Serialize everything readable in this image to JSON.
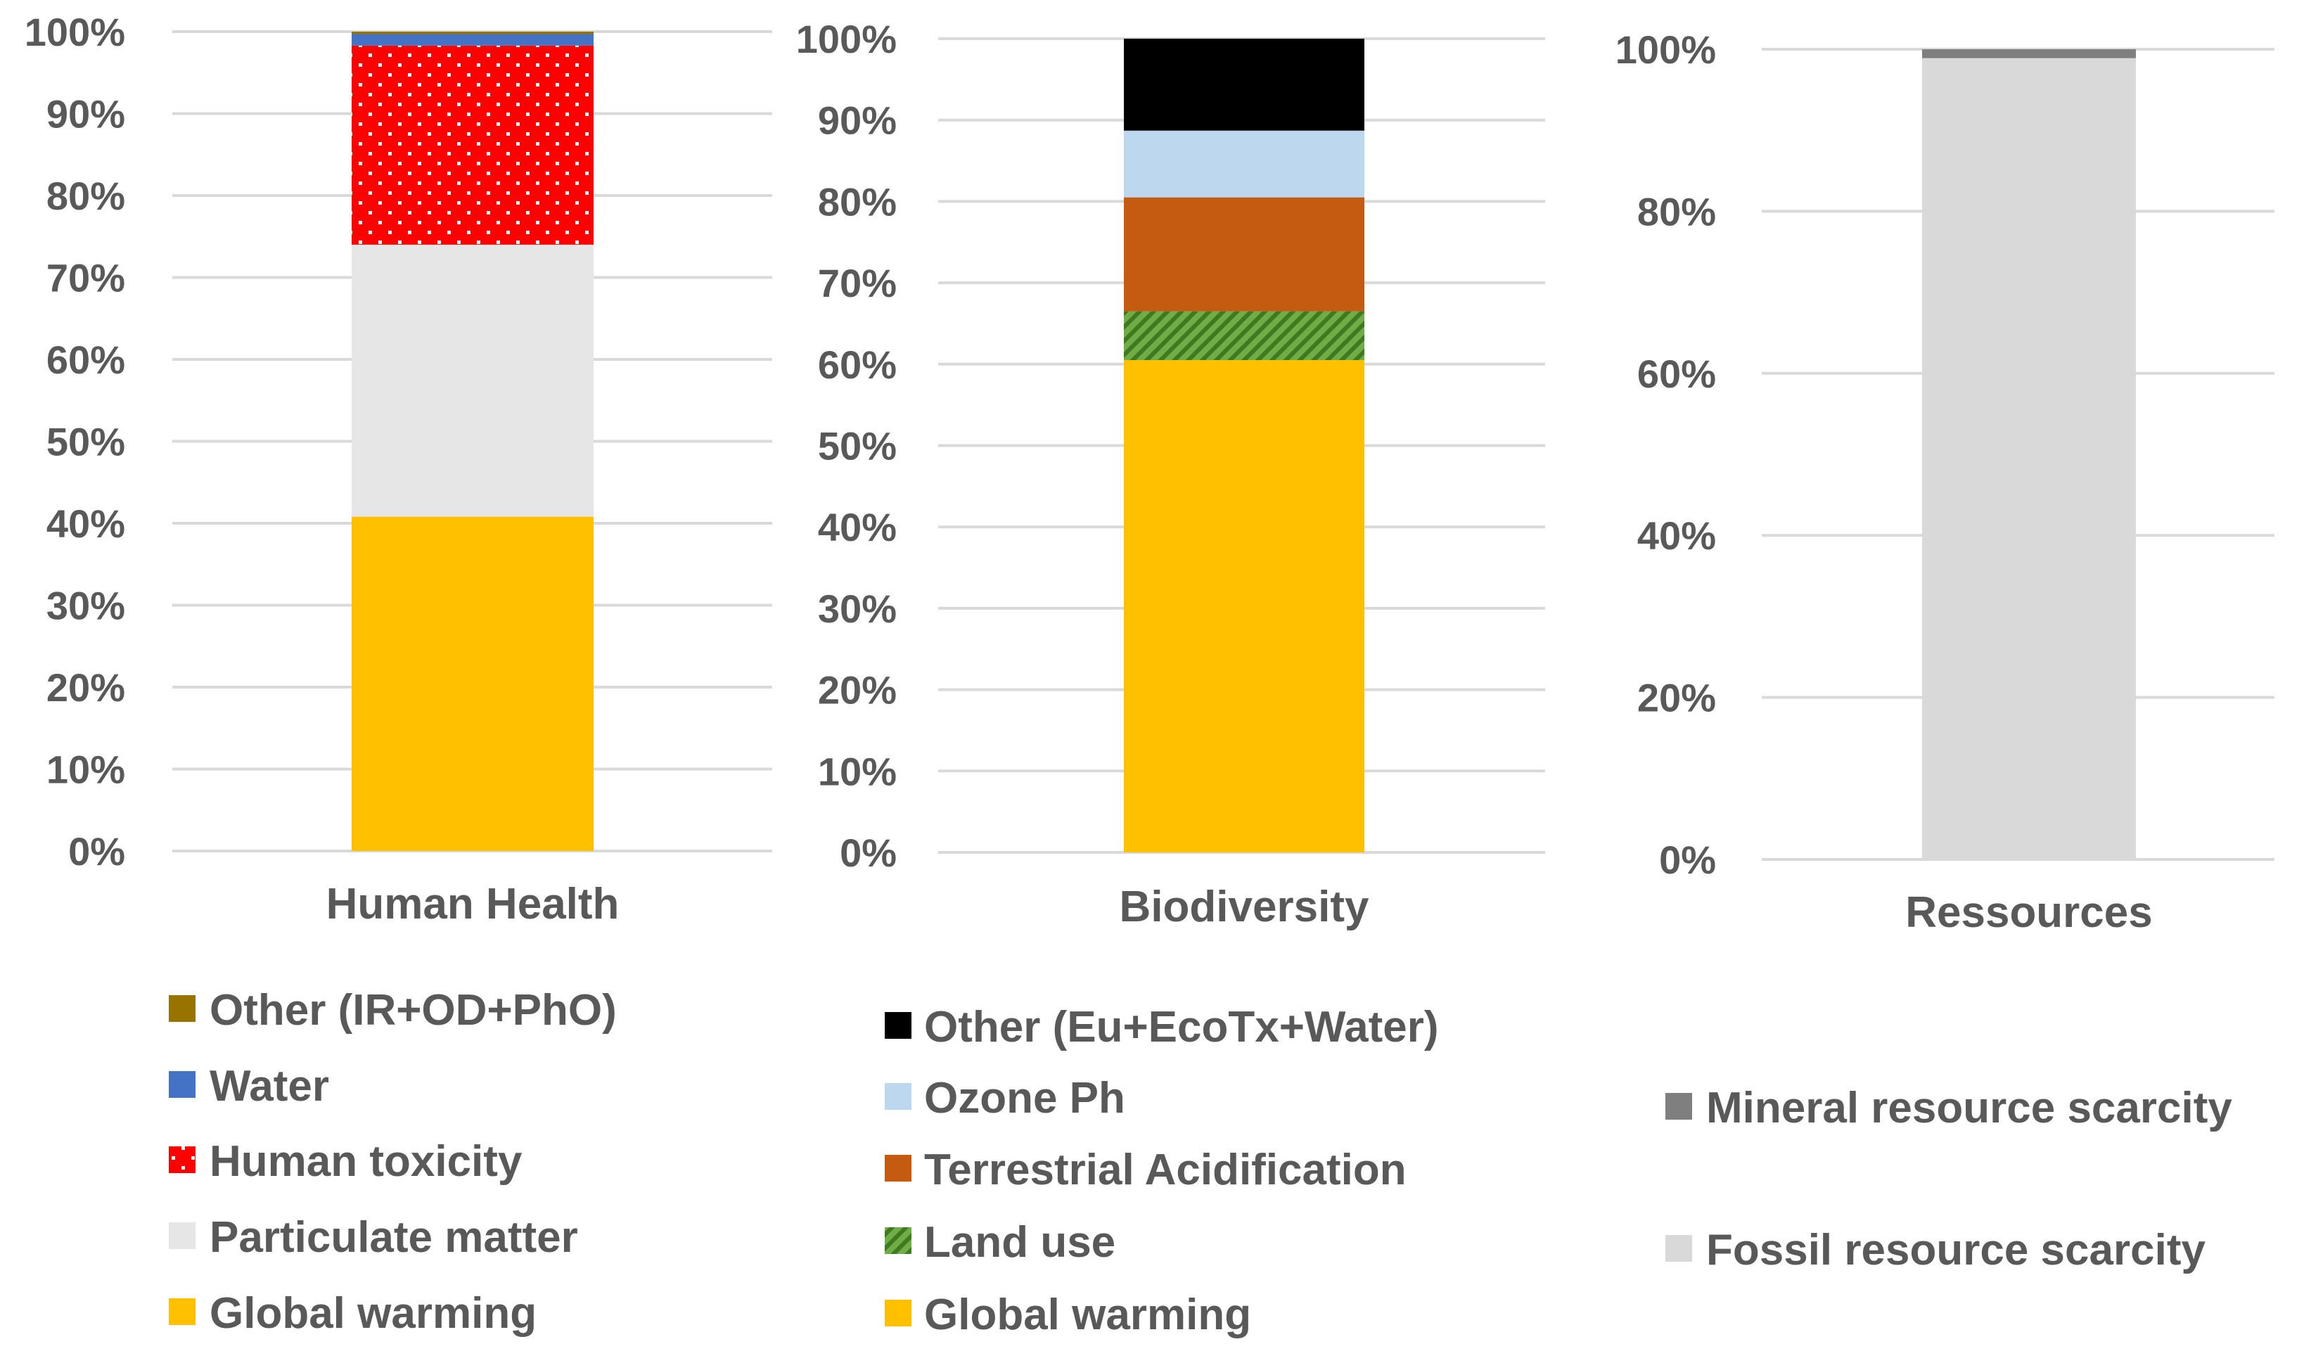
{
  "chart_data": [
    {
      "type": "bar",
      "stacked": true,
      "title": "",
      "categories": [
        "Human Health"
      ],
      "ylim": [
        0,
        100
      ],
      "yticks": [
        "0%",
        "10%",
        "20%",
        "30%",
        "40%",
        "50%",
        "60%",
        "70%",
        "80%",
        "90%",
        "100%"
      ],
      "grid": true,
      "series": [
        {
          "name": "Global warming",
          "values": [
            40.8
          ],
          "color": "#FFC000",
          "pattern": "solid"
        },
        {
          "name": "Particulate matter",
          "values": [
            33.2
          ],
          "color": "#E7E6E6",
          "pattern": "solid"
        },
        {
          "name": "Human toxicity",
          "values": [
            24.3
          ],
          "color": "#FF0000",
          "pattern": "dots"
        },
        {
          "name": "Water",
          "values": [
            1.4
          ],
          "color": "#4472C4",
          "pattern": "solid"
        },
        {
          "name": "Other (IR+OD+PhO)",
          "values": [
            0.3
          ],
          "color": "#997300",
          "pattern": "solid"
        }
      ],
      "legend_order": [
        "Other (IR+OD+PhO)",
        "Water",
        "Human toxicity",
        "Particulate matter",
        "Global warming"
      ],
      "legend_position": "bottom"
    },
    {
      "type": "bar",
      "stacked": true,
      "title": "",
      "categories": [
        "Biodiversity"
      ],
      "ylim": [
        0,
        100
      ],
      "yticks": [
        "0%",
        "10%",
        "20%",
        "30%",
        "40%",
        "50%",
        "60%",
        "70%",
        "80%",
        "90%",
        "100%"
      ],
      "grid": true,
      "series": [
        {
          "name": "Global warming",
          "values": [
            60.5
          ],
          "color": "#FFC000",
          "pattern": "solid"
        },
        {
          "name": "Land use",
          "values": [
            6.0
          ],
          "color": "#70AD47",
          "pattern": "stripes"
        },
        {
          "name": "Terrestrial Acidification",
          "values": [
            14.0
          ],
          "color": "#C55A11",
          "pattern": "solid"
        },
        {
          "name": "Ozone Ph",
          "values": [
            8.2
          ],
          "color": "#BDD7EE",
          "pattern": "solid"
        },
        {
          "name": "Other (Eu+EcoTx+Water)",
          "values": [
            11.3
          ],
          "color": "#000000",
          "pattern": "solid"
        }
      ],
      "legend_order": [
        "Other (Eu+EcoTx+Water)",
        "Ozone Ph",
        "Terrestrial Acidification",
        "Land use",
        "Global warming"
      ],
      "legend_position": "bottom"
    },
    {
      "type": "bar",
      "stacked": true,
      "title": "",
      "categories": [
        "Ressources"
      ],
      "ylim": [
        0,
        100
      ],
      "yticks": [
        "0%",
        "20%",
        "40%",
        "60%",
        "80%",
        "100%"
      ],
      "grid": true,
      "series": [
        {
          "name": "Fossil resource scarcity",
          "values": [
            98.9
          ],
          "color": "#D9D9D9",
          "pattern": "solid"
        },
        {
          "name": "Mineral resource scarcity",
          "values": [
            1.1
          ],
          "color": "#7F7F7F",
          "pattern": "solid"
        }
      ],
      "legend_order": [
        "Mineral resource scarcity",
        "Fossil resource scarcity"
      ],
      "legend_position": "bottom"
    }
  ]
}
